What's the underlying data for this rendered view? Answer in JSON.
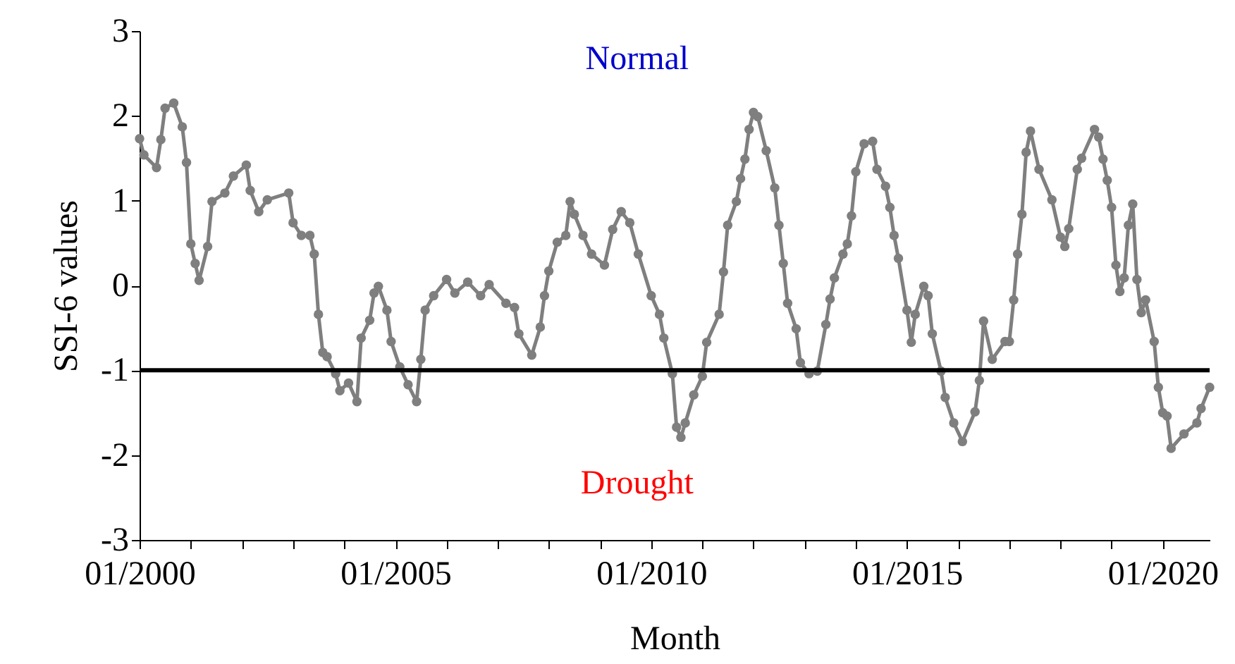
{
  "chart_data": {
    "type": "line",
    "xlabel": "Month",
    "ylabel": "SSI-6 values",
    "annotations": [
      "Normal",
      "Drought"
    ],
    "x": [
      "2000-01",
      "2000-02",
      "2000-05",
      "2000-06",
      "2000-07",
      "2000-09",
      "2000-11",
      "2000-12",
      "2001-01",
      "2001-02",
      "2001-03",
      "2001-05",
      "2001-06",
      "2001-09",
      "2001-11",
      "2002-02",
      "2002-03",
      "2002-05",
      "2002-07",
      "2002-12",
      "2003-01",
      "2003-03",
      "2003-05",
      "2003-06",
      "2003-07",
      "2003-08",
      "2003-09",
      "2003-11",
      "2003-12",
      "2004-02",
      "2004-04",
      "2004-05",
      "2004-07",
      "2004-08",
      "2004-09",
      "2004-11",
      "2004-12",
      "2005-02",
      "2005-04",
      "2005-06",
      "2005-07",
      "2005-08",
      "2005-10",
      "2006-01",
      "2006-03",
      "2006-06",
      "2006-09",
      "2006-11",
      "2007-03",
      "2007-05",
      "2007-06",
      "2007-09",
      "2007-11",
      "2007-12",
      "2008-01",
      "2008-03",
      "2008-05",
      "2008-06",
      "2008-07",
      "2008-09",
      "2008-11",
      "2009-02",
      "2009-04",
      "2009-06",
      "2009-08",
      "2009-10",
      "2010-01",
      "2010-03",
      "2010-04",
      "2010-06",
      "2010-07",
      "2010-08",
      "2010-09",
      "2010-11",
      "2011-01",
      "2011-02",
      "2011-05",
      "2011-06",
      "2011-07",
      "2011-09",
      "2011-10",
      "2011-11",
      "2011-12",
      "2012-01",
      "2012-02",
      "2012-04",
      "2012-06",
      "2012-07",
      "2012-08",
      "2012-09",
      "2012-11",
      "2012-12",
      "2013-02",
      "2013-04",
      "2013-06",
      "2013-07",
      "2013-08",
      "2013-10",
      "2013-11",
      "2013-12",
      "2014-01",
      "2014-03",
      "2014-05",
      "2014-06",
      "2014-08",
      "2014-09",
      "2014-10",
      "2014-11",
      "2015-01",
      "2015-02",
      "2015-03",
      "2015-05",
      "2015-06",
      "2015-07",
      "2015-09",
      "2015-10",
      "2015-12",
      "2016-02",
      "2016-05",
      "2016-06",
      "2016-07",
      "2016-09",
      "2016-12",
      "2017-01",
      "2017-02",
      "2017-03",
      "2017-04",
      "2017-05",
      "2017-06",
      "2017-08",
      "2017-11",
      "2018-01",
      "2018-02",
      "2018-03",
      "2018-05",
      "2018-06",
      "2018-09",
      "2018-10",
      "2018-11",
      "2018-12",
      "2019-01",
      "2019-02",
      "2019-03",
      "2019-04",
      "2019-05",
      "2019-06",
      "2019-07",
      "2019-08",
      "2019-09",
      "2019-11",
      "2019-12",
      "2020-01",
      "2020-02",
      "2020-03",
      "2020-06",
      "2020-09",
      "2020-10",
      "2020-12"
    ],
    "series": [
      {
        "color": "#7f7f7f",
        "values": [
          1.73,
          1.54,
          1.39,
          1.72,
          2.09,
          2.15,
          1.87,
          1.45,
          0.49,
          0.26,
          0.06,
          0.46,
          0.99,
          1.09,
          1.29,
          1.42,
          1.12,
          0.87,
          1.01,
          1.09,
          0.74,
          0.59,
          0.59,
          0.37,
          -0.34,
          -0.79,
          -0.84,
          -1.04,
          -1.24,
          -1.15,
          -1.37,
          -0.62,
          -0.41,
          -0.09,
          -0.01,
          -0.29,
          -0.66,
          -0.96,
          -1.17,
          -1.37,
          -0.87,
          -0.29,
          -0.12,
          0.07,
          -0.09,
          0.04,
          -0.12,
          0.01,
          -0.21,
          -0.26,
          -0.57,
          -0.82,
          -0.49,
          -0.12,
          0.17,
          0.51,
          0.59,
          0.99,
          0.84,
          0.59,
          0.37,
          0.24,
          0.66,
          0.87,
          0.74,
          0.37,
          -0.12,
          -0.34,
          -0.62,
          -1.04,
          -1.67,
          -1.79,
          -1.62,
          -1.29,
          -1.07,
          -0.67,
          -0.34,
          0.16,
          0.71,
          0.99,
          1.26,
          1.49,
          1.84,
          2.04,
          1.99,
          1.59,
          1.15,
          0.71,
          0.26,
          -0.21,
          -0.51,
          -0.91,
          -1.04,
          -1.01,
          -0.46,
          -0.16,
          0.09,
          0.37,
          0.49,
          0.82,
          1.34,
          1.67,
          1.7,
          1.37,
          1.17,
          0.92,
          0.59,
          0.32,
          -0.29,
          -0.67,
          -0.34,
          -0.01,
          -0.12,
          -0.57,
          -1.01,
          -1.32,
          -1.62,
          -1.84,
          -1.49,
          -1.12,
          -0.42,
          -0.87,
          -0.66,
          -0.66,
          -0.17,
          0.37,
          0.84,
          1.57,
          1.82,
          1.37,
          1.01,
          0.57,
          0.46,
          0.67,
          1.37,
          1.5,
          1.84,
          1.75,
          1.49,
          1.24,
          0.92,
          0.24,
          -0.07,
          0.09,
          0.71,
          0.96,
          0.07,
          -0.32,
          -0.17,
          -0.66,
          -1.2,
          -1.5,
          -1.54,
          -1.92,
          -1.75,
          -1.62,
          -1.45,
          -1.2
        ]
      }
    ],
    "xlim": [
      "2000-01",
      "2020-12"
    ],
    "xticks": [
      {
        "value": "2000-01",
        "label": "01/2000"
      },
      {
        "value": "2001-01",
        "label": null
      },
      {
        "value": "2002-01",
        "label": null
      },
      {
        "value": "2003-01",
        "label": null
      },
      {
        "value": "2004-01",
        "label": null
      },
      {
        "value": "2005-01",
        "label": "01/2005"
      },
      {
        "value": "2006-01",
        "label": null
      },
      {
        "value": "2007-01",
        "label": null
      },
      {
        "value": "2008-01",
        "label": null
      },
      {
        "value": "2009-01",
        "label": null
      },
      {
        "value": "2010-01",
        "label": "01/2010"
      },
      {
        "value": "2011-01",
        "label": null
      },
      {
        "value": "2012-01",
        "label": null
      },
      {
        "value": "2013-01",
        "label": null
      },
      {
        "value": "2014-01",
        "label": null
      },
      {
        "value": "2015-01",
        "label": "01/2015"
      },
      {
        "value": "2016-01",
        "label": null
      },
      {
        "value": "2017-01",
        "label": null
      },
      {
        "value": "2018-01",
        "label": null
      },
      {
        "value": "2019-01",
        "label": null
      },
      {
        "value": "2020-01",
        "label": "01/2020"
      }
    ],
    "ylim": [
      -3,
      3
    ],
    "yticks": [
      -3,
      -2,
      -1,
      0,
      1,
      2,
      3
    ],
    "ref_lines": [
      {
        "axis": "y",
        "value": -1,
        "color": "#000000"
      }
    ],
    "grid": false,
    "marker": "circle",
    "line_style": "solid"
  }
}
